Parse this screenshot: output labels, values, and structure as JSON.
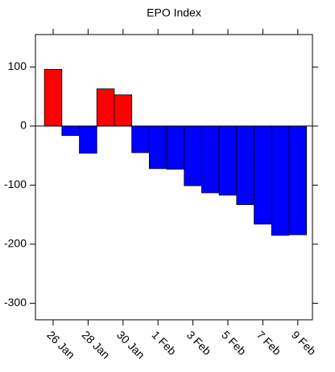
{
  "chart_data": {
    "type": "bar",
    "title": "EPO Index",
    "categories": [
      "26 Jan",
      null,
      "28 Jan",
      null,
      "30 Jan",
      null,
      "1 Feb",
      null,
      "3 Feb",
      null,
      "5 Feb",
      null,
      "7 Feb",
      null,
      "9 Feb"
    ],
    "values": [
      96,
      -16,
      -46,
      63,
      53,
      -45,
      -72,
      -73,
      -101,
      -113,
      -117,
      -133,
      -166,
      -185,
      -184
    ],
    "positive_color": "#ff0000",
    "negative_color": "#0000ff",
    "ylim": [
      -328,
      155
    ],
    "yticks": [
      -300,
      -200,
      -100,
      0,
      100
    ],
    "grid": false
  }
}
